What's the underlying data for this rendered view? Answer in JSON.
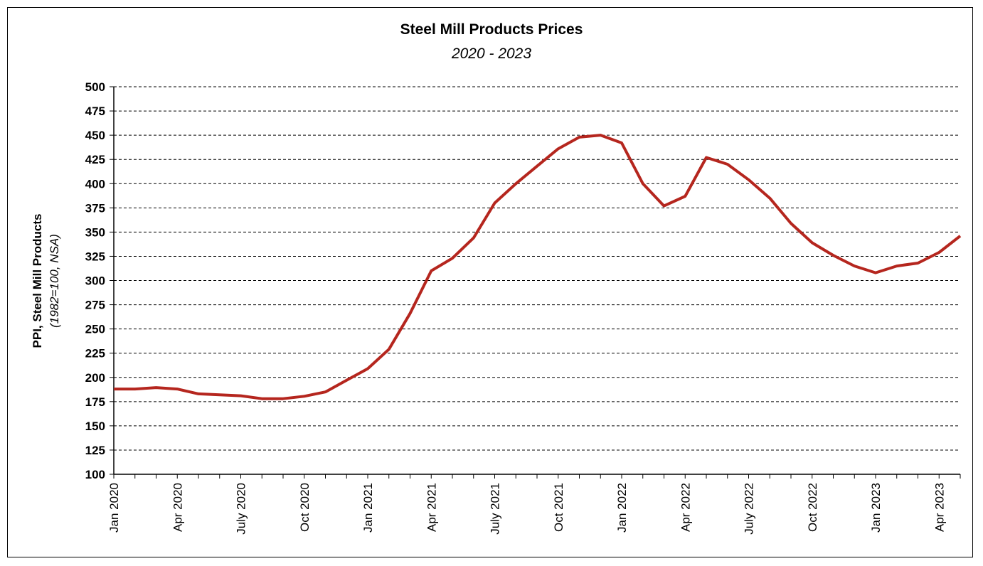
{
  "chart_data": {
    "type": "line",
    "title": "Steel Mill Products Prices",
    "subtitle": "2020 - 2023",
    "ylabel": "PPI, Steel Mill Products",
    "ylabel_sub": "(1982=100, NSA)",
    "xlabel": "",
    "ylim": [
      100,
      500
    ],
    "ytick_step": 25,
    "grid": true,
    "grid_style": "dashed",
    "line_color": "#b5261e",
    "x_tick_labels": [
      "Jan 2020",
      "Apr 2020",
      "July 2020",
      "Oct 2020",
      "Jan 2021",
      "Apr 2021",
      "July 2021",
      "Oct 2021",
      "Jan 2022",
      "Apr 2022",
      "July 2022",
      "Oct 2022",
      "Jan 2023",
      "Apr 2023"
    ],
    "x_tick_every": 3,
    "series": [
      {
        "months": [
          "Jan 2020",
          "Feb 2020",
          "Mar 2020",
          "Apr 2020",
          "May 2020",
          "Jun 2020",
          "Jul 2020",
          "Aug 2020",
          "Sep 2020",
          "Oct 2020",
          "Nov 2020",
          "Dec 2020",
          "Jan 2021",
          "Feb 2021",
          "Mar 2021",
          "Apr 2021",
          "May 2021",
          "Jun 2021",
          "Jul 2021",
          "Aug 2021",
          "Sep 2021",
          "Oct 2021",
          "Nov 2021",
          "Dec 2021",
          "Jan 2022",
          "Feb 2022",
          "Mar 2022",
          "Apr 2022",
          "May 2022",
          "Jun 2022",
          "Jul 2022",
          "Aug 2022",
          "Sep 2022",
          "Oct 2022",
          "Nov 2022",
          "Dec 2022",
          "Jan 2023",
          "Feb 2023",
          "Mar 2023",
          "Apr 2023",
          "May 2023"
        ],
        "values": [
          188,
          188,
          189.5,
          188,
          183,
          182,
          181,
          178,
          178,
          180.5,
          185,
          197,
          209,
          229,
          266,
          310,
          323,
          344,
          380,
          400,
          418,
          436,
          448,
          450,
          442,
          400,
          377,
          387,
          427,
          420,
          404,
          385,
          359,
          339,
          326,
          315,
          308,
          315,
          318,
          329,
          346
        ]
      }
    ]
  }
}
